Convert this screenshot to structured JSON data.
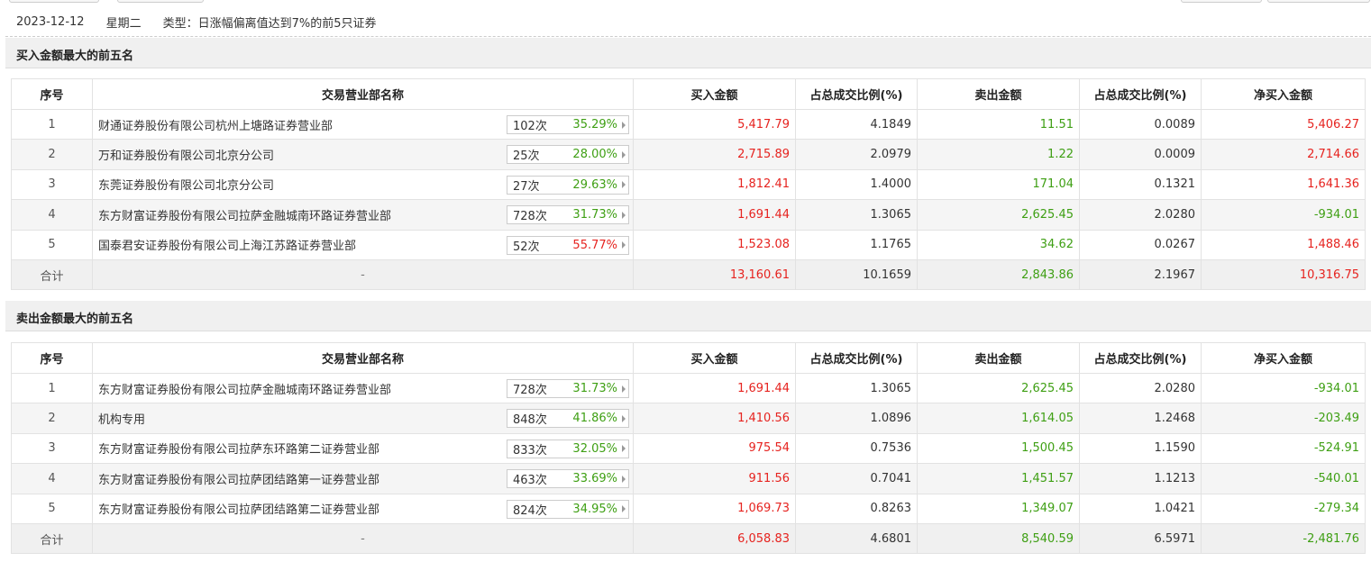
{
  "info": {
    "date": "2023-12-12",
    "weekday": "星期二",
    "type_label": "类型：",
    "type_value": "日涨幅偏离值达到7%的前5只证券"
  },
  "columns": {
    "idx": "序号",
    "name": "交易营业部名称",
    "buy": "买入金额",
    "buy_pct": "占总成交比例(%)",
    "sell": "卖出金额",
    "sell_pct": "占总成交比例(%)",
    "net": "净买入金额"
  },
  "buy_section": {
    "title": "买入金额最大的前五名",
    "rows": [
      {
        "idx": "1",
        "name": "财通证券股份有限公司杭州上塘路证券营业部",
        "count": "102次",
        "rate": "35.29%",
        "rate_color": "green",
        "buy": "5,417.79",
        "buy_pct": "4.1849",
        "sell": "11.51",
        "sell_pct": "0.0089",
        "net": "5,406.27",
        "net_color": "red"
      },
      {
        "idx": "2",
        "name": "万和证券股份有限公司北京分公司",
        "count": "25次",
        "rate": "28.00%",
        "rate_color": "green",
        "buy": "2,715.89",
        "buy_pct": "2.0979",
        "sell": "1.22",
        "sell_pct": "0.0009",
        "net": "2,714.66",
        "net_color": "red"
      },
      {
        "idx": "3",
        "name": "东莞证券股份有限公司北京分公司",
        "count": "27次",
        "rate": "29.63%",
        "rate_color": "green",
        "buy": "1,812.41",
        "buy_pct": "1.4000",
        "sell": "171.04",
        "sell_pct": "0.1321",
        "net": "1,641.36",
        "net_color": "red"
      },
      {
        "idx": "4",
        "name": "东方财富证券股份有限公司拉萨金融城南环路证券营业部",
        "count": "728次",
        "rate": "31.73%",
        "rate_color": "green",
        "buy": "1,691.44",
        "buy_pct": "1.3065",
        "sell": "2,625.45",
        "sell_pct": "2.0280",
        "net": "-934.01",
        "net_color": "green"
      },
      {
        "idx": "5",
        "name": "国泰君安证券股份有限公司上海江苏路证券营业部",
        "count": "52次",
        "rate": "55.77%",
        "rate_color": "red",
        "buy": "1,523.08",
        "buy_pct": "1.1765",
        "sell": "34.62",
        "sell_pct": "0.0267",
        "net": "1,488.46",
        "net_color": "red"
      }
    ],
    "total": {
      "label": "合计",
      "name": "-",
      "buy": "13,160.61",
      "buy_pct": "10.1659",
      "sell": "2,843.86",
      "sell_pct": "2.1967",
      "net": "10,316.75",
      "net_color": "red"
    }
  },
  "sell_section": {
    "title": "卖出金额最大的前五名",
    "rows": [
      {
        "idx": "1",
        "name": "东方财富证券股份有限公司拉萨金融城南环路证券营业部",
        "count": "728次",
        "rate": "31.73%",
        "rate_color": "green",
        "buy": "1,691.44",
        "buy_pct": "1.3065",
        "sell": "2,625.45",
        "sell_pct": "2.0280",
        "net": "-934.01",
        "net_color": "green"
      },
      {
        "idx": "2",
        "name": "机构专用",
        "count": "848次",
        "rate": "41.86%",
        "rate_color": "green",
        "buy": "1,410.56",
        "buy_pct": "1.0896",
        "sell": "1,614.05",
        "sell_pct": "1.2468",
        "net": "-203.49",
        "net_color": "green"
      },
      {
        "idx": "3",
        "name": "东方财富证券股份有限公司拉萨东环路第二证券营业部",
        "count": "833次",
        "rate": "32.05%",
        "rate_color": "green",
        "buy": "975.54",
        "buy_pct": "0.7536",
        "sell": "1,500.45",
        "sell_pct": "1.1590",
        "net": "-524.91",
        "net_color": "green"
      },
      {
        "idx": "4",
        "name": "东方财富证券股份有限公司拉萨团结路第一证券营业部",
        "count": "463次",
        "rate": "33.69%",
        "rate_color": "green",
        "buy": "911.56",
        "buy_pct": "0.7041",
        "sell": "1,451.57",
        "sell_pct": "1.1213",
        "net": "-540.01",
        "net_color": "green"
      },
      {
        "idx": "5",
        "name": "东方财富证券股份有限公司拉萨团结路第二证券营业部",
        "count": "824次",
        "rate": "34.95%",
        "rate_color": "green",
        "buy": "1,069.73",
        "buy_pct": "0.8263",
        "sell": "1,349.07",
        "sell_pct": "1.0421",
        "net": "-279.34",
        "net_color": "green"
      }
    ],
    "total": {
      "label": "合计",
      "name": "-",
      "buy": "6,058.83",
      "buy_pct": "4.6801",
      "sell": "8,540.59",
      "sell_pct": "6.5971",
      "net": "-2,481.76",
      "net_color": "green"
    }
  },
  "colors": {
    "red": "#e6231f",
    "green": "#3e9f13"
  }
}
